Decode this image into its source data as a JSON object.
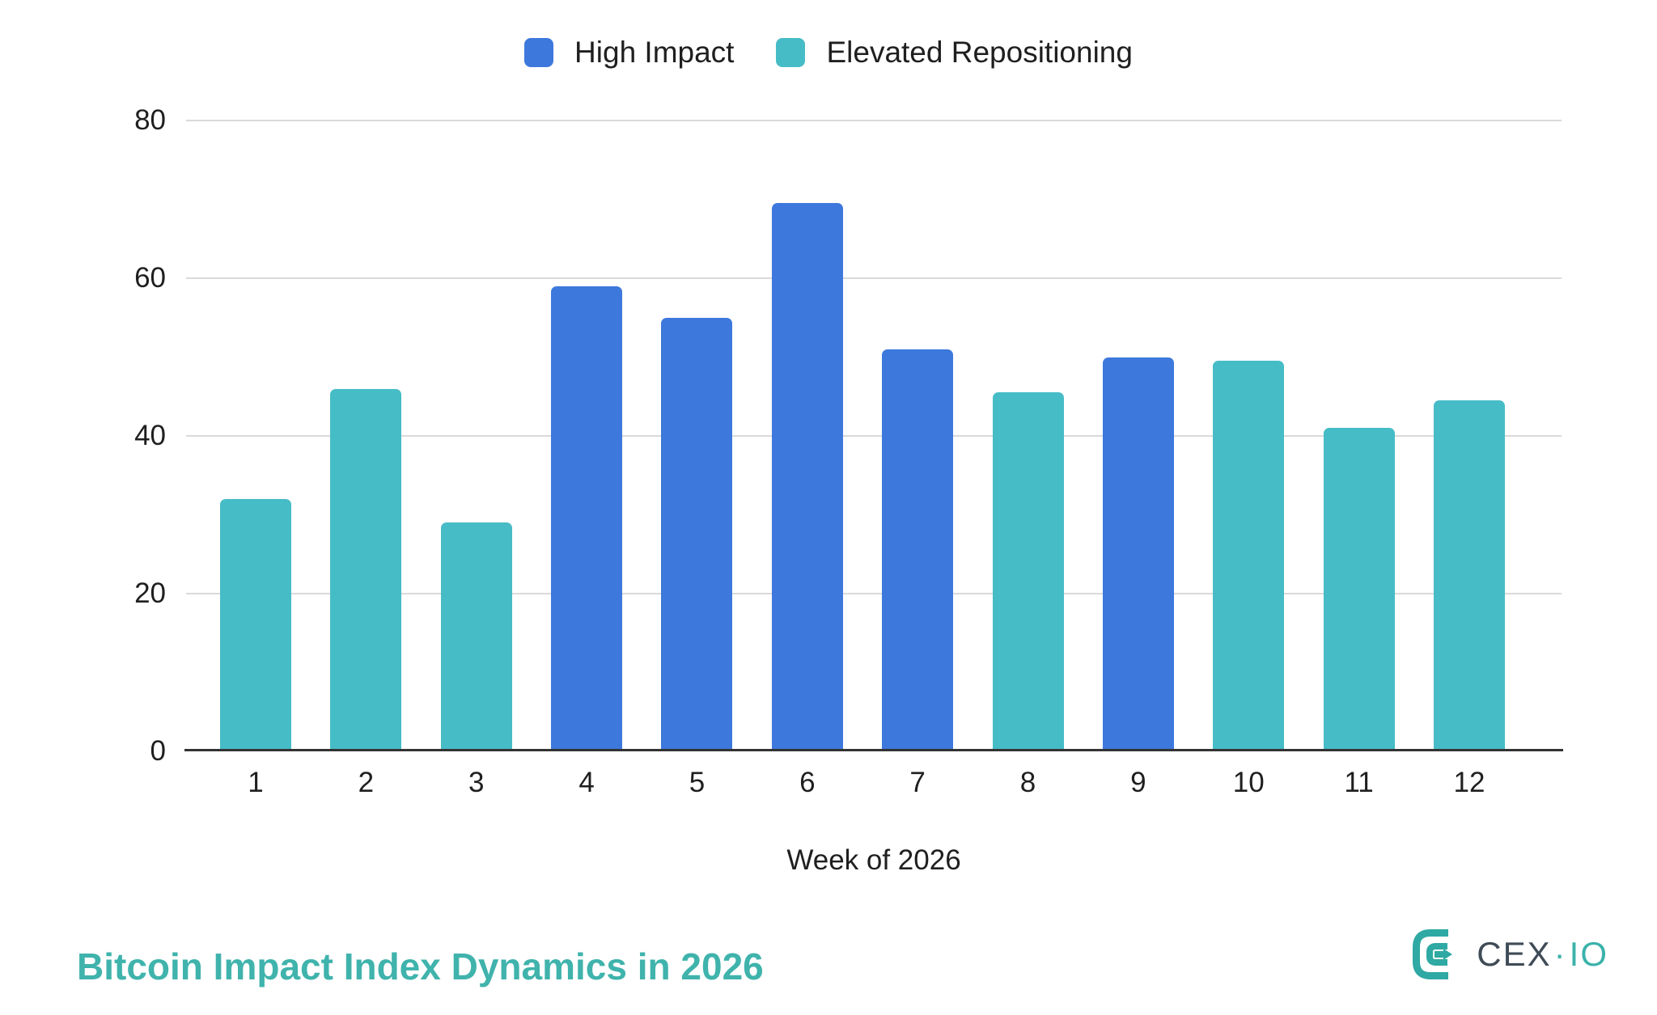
{
  "chart_data": {
    "type": "bar",
    "title": "Bitcoin Impact Index Dynamics in 2026",
    "xlabel": "Week of 2026",
    "ylabel": "",
    "categories": [
      "1",
      "2",
      "3",
      "4",
      "5",
      "6",
      "7",
      "8",
      "9",
      "10",
      "11",
      "12"
    ],
    "series": [
      {
        "name": "High Impact",
        "color": "#3d78dc",
        "values": [
          null,
          null,
          null,
          59,
          55,
          69.5,
          51,
          null,
          50,
          null,
          null,
          null
        ]
      },
      {
        "name": "Elevated Repositioning",
        "color": "#46bcc6",
        "values": [
          32,
          46,
          29,
          null,
          null,
          null,
          null,
          45.5,
          null,
          49.5,
          41,
          44.5
        ]
      }
    ],
    "ylim": [
      0,
      80
    ],
    "yticks": [
      0,
      20,
      40,
      60,
      80
    ],
    "grid": true,
    "legend_position": "top",
    "title_color": "#3fb3ac"
  },
  "logo": {
    "text_primary": "CEX",
    "separator": "·",
    "text_secondary": "IO",
    "mark_color": "#2fa9a3"
  }
}
